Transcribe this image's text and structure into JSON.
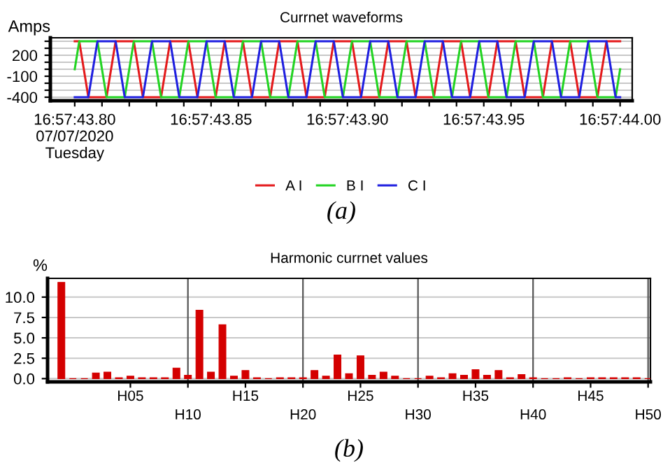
{
  "chart_data": [
    {
      "type": "line",
      "title": "Currnet waveforms",
      "ylabel": "Amps",
      "categories": [
        "16:57:43.80\n07/07/2020\nTuesday",
        null,
        null,
        null,
        null,
        null,
        null,
        null,
        null,
        null,
        null,
        null,
        null,
        null,
        null,
        null,
        null,
        null,
        null,
        null,
        null,
        null,
        null,
        null,
        null,
        null,
        null,
        null,
        null,
        null,
        "16:57:43.85",
        null,
        null,
        null,
        null,
        null,
        null,
        null,
        null,
        null,
        null,
        null,
        null,
        null,
        null,
        null,
        null,
        null,
        null,
        null,
        null,
        null,
        null,
        null,
        null,
        null,
        null,
        null,
        null,
        null,
        "16:57:43.90",
        null,
        null,
        null,
        null,
        null,
        null,
        null,
        null,
        null,
        null,
        null,
        null,
        null,
        null,
        null,
        null,
        null,
        null,
        null,
        null,
        null,
        null,
        null,
        null,
        null,
        null,
        null,
        null,
        null,
        "16:57:43.95",
        null,
        null,
        null,
        null,
        null,
        null,
        null,
        null,
        null,
        null,
        null,
        null,
        null,
        null,
        null,
        null,
        null,
        null,
        null,
        null,
        null,
        null,
        null,
        null,
        null,
        null,
        null,
        null,
        null,
        "16:57:44.00"
      ],
      "series": [
        {
          "name": "A I",
          "color": "#e41a1c",
          "values": [
            400,
            400,
            0,
            -400,
            -400,
            -400,
            -400,
            -400,
            0,
            400,
            400,
            400,
            400,
            400,
            0,
            -400,
            -400,
            -400,
            -400,
            -400,
            0,
            400,
            400,
            400,
            400,
            400,
            0,
            -400,
            -400,
            -400,
            -400,
            -400,
            0,
            400,
            400,
            400,
            400,
            400,
            0,
            -400,
            -400,
            -400,
            -400,
            -400,
            0,
            400,
            400,
            400,
            400,
            400,
            0,
            -400,
            -400,
            -400,
            -400,
            -400,
            0,
            400,
            400,
            400,
            400,
            400,
            0,
            -400,
            -400,
            -400,
            -400,
            -400,
            0,
            400,
            400,
            400,
            400,
            400,
            0,
            -400,
            -400,
            -400,
            -400,
            -400,
            0,
            400,
            400,
            400,
            400,
            400,
            0,
            -400,
            -400,
            -400,
            -400,
            -400,
            0,
            400,
            400,
            400,
            400,
            400,
            0,
            -400,
            -400,
            -400,
            -400,
            -400,
            0,
            400,
            400,
            400,
            400,
            400,
            0,
            -400,
            -400,
            -400,
            -400,
            -400,
            0,
            400,
            400,
            400,
            400
          ]
        },
        {
          "name": "B I",
          "color": "#22d422",
          "values": [
            0,
            400,
            400,
            400,
            400,
            400,
            0,
            -400,
            -400,
            -400,
            -400,
            -400,
            0,
            400,
            400,
            400,
            400,
            400,
            0,
            -400,
            -400,
            -400,
            -400,
            -400,
            0,
            400,
            400,
            400,
            400,
            400,
            0,
            -400,
            -400,
            -400,
            -400,
            -400,
            0,
            400,
            400,
            400,
            400,
            400,
            0,
            -400,
            -400,
            -400,
            -400,
            -400,
            0,
            400,
            400,
            400,
            400,
            400,
            0,
            -400,
            -400,
            -400,
            -400,
            -400,
            0,
            400,
            400,
            400,
            400,
            400,
            0,
            -400,
            -400,
            -400,
            -400,
            -400,
            0,
            400,
            400,
            400,
            400,
            400,
            0,
            -400,
            -400,
            -400,
            -400,
            -400,
            0,
            400,
            400,
            400,
            400,
            400,
            0,
            -400,
            -400,
            -400,
            -400,
            -400,
            0,
            400,
            400,
            400,
            400,
            400,
            0,
            -400,
            -400,
            -400,
            -400,
            -400,
            0,
            400,
            400,
            400,
            400,
            400,
            0,
            -400,
            -400,
            -400,
            -400,
            -400,
            0
          ]
        },
        {
          "name": "C I",
          "color": "#1f1fe0",
          "values": [
            -400,
            -400,
            -400,
            -400,
            0,
            400,
            400,
            400,
            400,
            400,
            0,
            -400,
            -400,
            -400,
            -400,
            -400,
            0,
            400,
            400,
            400,
            400,
            400,
            0,
            -400,
            -400,
            -400,
            -400,
            -400,
            0,
            400,
            400,
            400,
            400,
            400,
            0,
            -400,
            -400,
            -400,
            -400,
            -400,
            0,
            400,
            400,
            400,
            400,
            400,
            0,
            -400,
            -400,
            -400,
            -400,
            -400,
            0,
            400,
            400,
            400,
            400,
            400,
            0,
            -400,
            -400,
            -400,
            -400,
            -400,
            0,
            400,
            400,
            400,
            400,
            400,
            0,
            -400,
            -400,
            -400,
            -400,
            -400,
            0,
            400,
            400,
            400,
            400,
            400,
            0,
            -400,
            -400,
            -400,
            -400,
            -400,
            0,
            400,
            400,
            400,
            400,
            400,
            0,
            -400,
            -400,
            -400,
            -400,
            -400,
            0,
            400,
            400,
            400,
            400,
            400,
            0,
            -400,
            -400,
            -400,
            -400,
            -400,
            0,
            400,
            400,
            400,
            400,
            400,
            0,
            -400,
            -400
          ]
        }
      ],
      "ylim": [
        -450,
        450
      ],
      "yticks": [
        {
          "value": 400,
          "label": null
        },
        {
          "value": 300,
          "label": null
        },
        200,
        {
          "value": 100,
          "label": null
        },
        {
          "value": 0,
          "label": null
        },
        -100,
        {
          "value": -200,
          "label": null
        },
        {
          "value": -300,
          "label": null
        },
        -400
      ],
      "grid": "y",
      "legend": "bottom",
      "annotations": [
        "(a)"
      ]
    },
    {
      "type": "bar",
      "title": "Harmonic currnet values",
      "ylabel": "%",
      "color": "#d40000",
      "categories": [
        null,
        null,
        null,
        null,
        null,
        null,
        "H05",
        null,
        null,
        null,
        null,
        "H10",
        null,
        null,
        null,
        null,
        "H15",
        null,
        null,
        null,
        null,
        "H20",
        null,
        null,
        null,
        null,
        "H25",
        null,
        null,
        null,
        null,
        "H30",
        null,
        null,
        null,
        null,
        "H35",
        null,
        null,
        null,
        null,
        "H40",
        null,
        null,
        null,
        null,
        "H45",
        null,
        null,
        null,
        null,
        "H50"
      ],
      "values": [
        11.8,
        0,
        0,
        0.7,
        0.8,
        0.1,
        0.3,
        0.1,
        0.1,
        0.1,
        1.3,
        0.4,
        8.4,
        0.8,
        6.6,
        0.3,
        1.0,
        0.1,
        0,
        0.1,
        0.1,
        0.1,
        1.0,
        0.3,
        2.9,
        0.6,
        2.8,
        0.4,
        0.8,
        0.3,
        0,
        0,
        0.3,
        0.1,
        0.6,
        0.4,
        1.1,
        0.4,
        1.0,
        0.1,
        0.5,
        0.1,
        0,
        0,
        0.1,
        0,
        0.1,
        0.1,
        0.1,
        0.1,
        0.1,
        0
      ],
      "ylim": [
        -0.4,
        12.3
      ],
      "yticks": [
        {
          "value": 0,
          "label": "0.0"
        },
        2.5,
        {
          "value": 5,
          "label": "5.0"
        },
        7.5,
        {
          "value": 10,
          "label": "10.0"
        }
      ],
      "grid": true,
      "annotations": [
        "(b)"
      ]
    }
  ]
}
